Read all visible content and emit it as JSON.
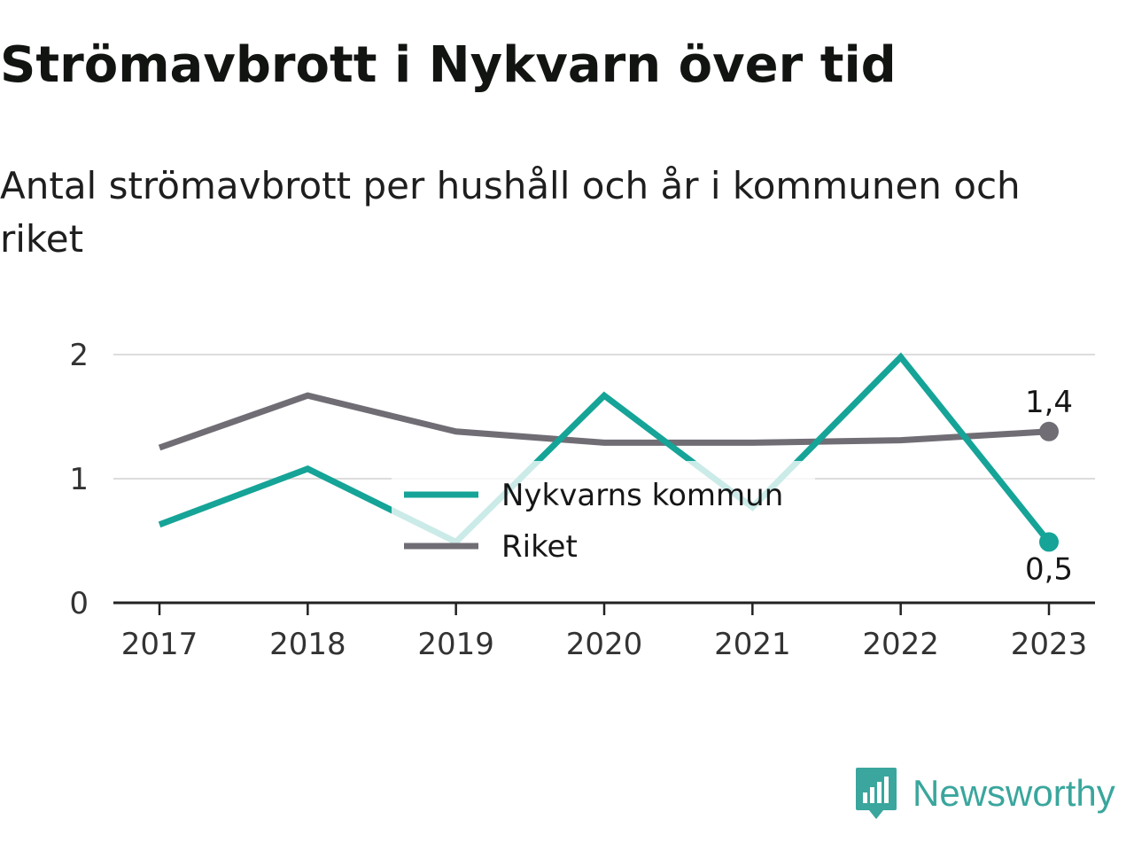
{
  "title": "Strömavbrott i Nykvarn över tid",
  "subtitle": "Antal strömavbrott per hushåll och år i kommunen och riket",
  "brand": {
    "name": "Newsworthy",
    "icon": "newsworthy-logo-icon",
    "color": "#3aa69d"
  },
  "chart_data": {
    "type": "line",
    "x": [
      "2017",
      "2018",
      "2019",
      "2020",
      "2021",
      "2022",
      "2023"
    ],
    "ylim": [
      0,
      2
    ],
    "yticks": [
      "0",
      "1",
      "2"
    ],
    "grid": true,
    "legend_position": "center",
    "series": [
      {
        "name": "Nykvarns kommun",
        "color": "#15a497",
        "values": [
          0.63,
          1.08,
          0.49,
          1.67,
          0.77,
          1.98,
          0.49
        ],
        "end_label": "0,5"
      },
      {
        "name": "Riket",
        "color": "#706d75",
        "values": [
          1.25,
          1.67,
          1.38,
          1.29,
          1.29,
          1.31,
          1.38
        ],
        "end_label": "1,4"
      }
    ]
  }
}
